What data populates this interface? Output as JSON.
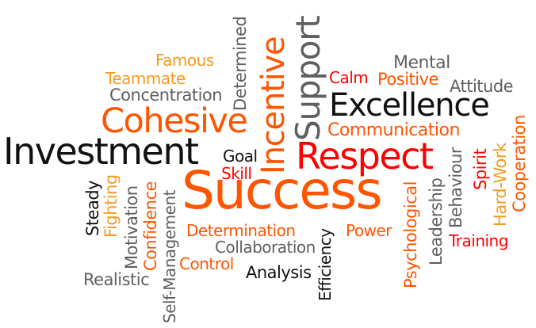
{
  "words": {
    "success": "Success",
    "excellence": "Excellence",
    "investment": "Investment",
    "cohesive": "Cohesive",
    "respect": "Respect",
    "support": "Support",
    "incentive": "Incentive",
    "communication": "Communication",
    "concentration": "Concentration",
    "teammate": "Teammate",
    "famous": "Famous",
    "determined": "Determined",
    "mental": "Mental",
    "calm": "Calm",
    "positive": "Positive",
    "attitude": "Attitude",
    "goal": "Goal",
    "skill": "Skill",
    "steady": "Steady",
    "fighting": "Fighting",
    "motivation": "Motivation",
    "confidence": "Confidence",
    "self_management": "Self-Management",
    "realistic": "Realistic",
    "determination": "Determination",
    "collaboration": "Collaboration",
    "control": "Control",
    "analysis": "Analysis",
    "efficiency": "Efficiency",
    "power": "Power",
    "psychological": "Psychological",
    "leadership": "Leadership",
    "behaviour": "Behaviour",
    "spirit": "Spirit",
    "hard_work": "Hard-Work",
    "cooperation": "Cooperation",
    "training": "Training"
  },
  "colors": {
    "black": "#111111",
    "gray": "#5f5f5f",
    "red": "#ff0000",
    "orange": "#ff5500",
    "amber": "#f79a1e"
  }
}
